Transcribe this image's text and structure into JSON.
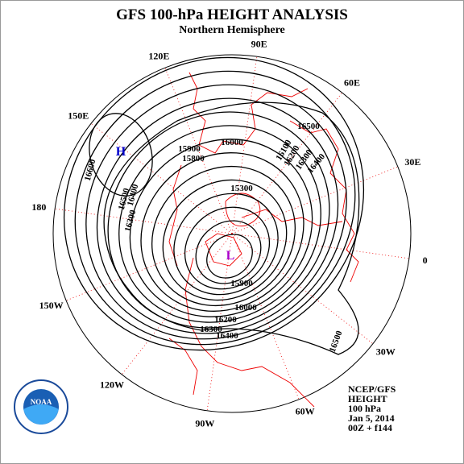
{
  "header": {
    "title": "GFS 100-hPa HEIGHT ANALYSIS",
    "subtitle": "Northern Hemisphere"
  },
  "map": {
    "longitude_labels": [
      "90E",
      "60E",
      "30E",
      "0",
      "30W",
      "60W",
      "90W",
      "120W",
      "150W",
      "180",
      "150E",
      "120E"
    ],
    "centers": [
      "H",
      "L"
    ],
    "contour_labels": [
      "16600",
      "16500",
      "16400",
      "16300",
      "16000",
      "15900",
      "15800",
      "16100",
      "16200",
      "16300",
      "16400",
      "16500",
      "15300",
      "16500",
      "16300",
      "16400",
      "16200",
      "16000",
      "15900"
    ]
  },
  "info": [
    "NCEP/GFS",
    "HEIGHT",
    "100 hPa",
    "Jan 5, 2014",
    "00Z + f144"
  ],
  "logo": {
    "text": "NOAA"
  }
}
